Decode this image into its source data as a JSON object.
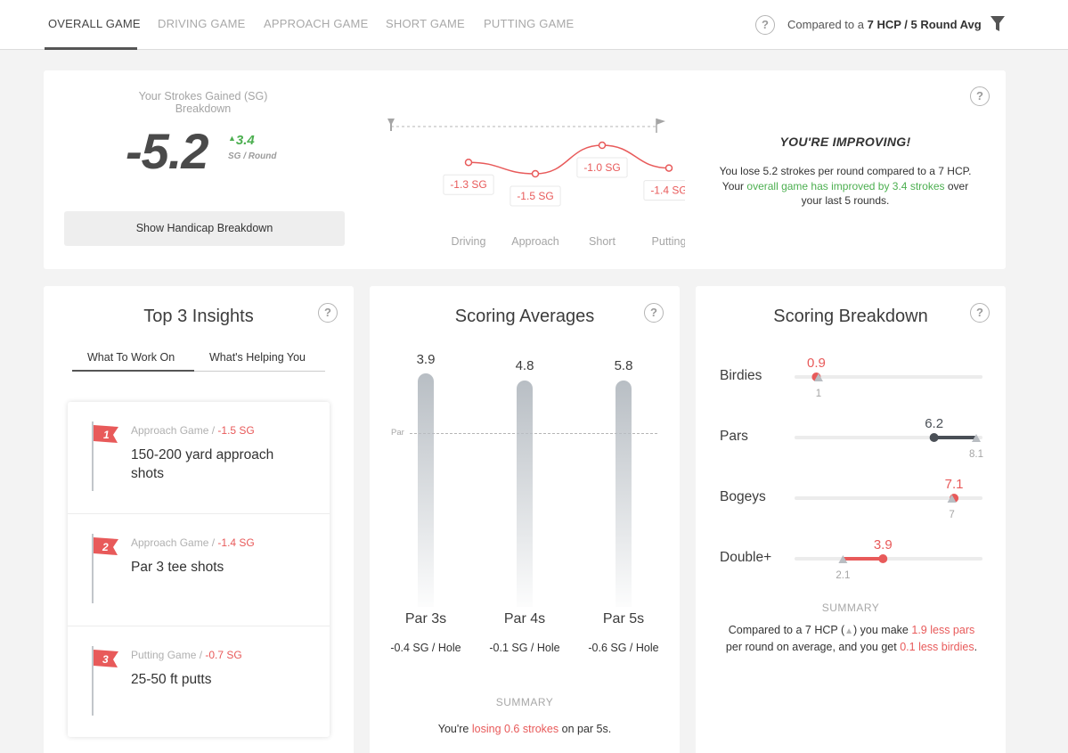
{
  "nav": {
    "tabs": [
      "OVERALL GAME",
      "DRIVING GAME",
      "APPROACH GAME",
      "SHORT GAME",
      "PUTTING GAME"
    ],
    "compare_prefix": "Compared to a",
    "compare_value": "7 HCP / 5 Round Avg"
  },
  "summary": {
    "label": "Your Strokes Gained (SG) Breakdown",
    "value": "-5.2",
    "delta": "3.4",
    "unit": "SG / Round",
    "button": "Show Handicap Breakdown",
    "improving_title": "YOU'RE IMPROVING!",
    "improving_line1": "You lose 5.2 strokes per round compared to a 7 HCP.",
    "improving_your": "Your",
    "improving_highlight": "overall game has improved by 3.4 strokes",
    "improving_over": "over",
    "improving_line3": "your last 5 rounds."
  },
  "chart_data": {
    "type": "line",
    "categories": [
      "Driving",
      "Approach",
      "Short",
      "Putting"
    ],
    "values": [
      -1.3,
      -1.5,
      -1.0,
      -1.4
    ],
    "data_labels": [
      "-1.3 SG",
      "-1.5 SG",
      "-1.0 SG",
      "-1.4 SG"
    ]
  },
  "insights": {
    "title": "Top 3 Insights",
    "tabs": [
      "What To Work On",
      "What's Helping You"
    ],
    "items": [
      {
        "num": "1",
        "category": "Approach Game /",
        "sg": "-1.5 SG",
        "title": "150-200 yard approach shots"
      },
      {
        "num": "2",
        "category": "Approach Game /",
        "sg": "-1.4 SG",
        "title": "Par 3 tee shots"
      },
      {
        "num": "3",
        "category": "Putting Game /",
        "sg": "-0.7 SG",
        "title": "25-50 ft putts"
      }
    ]
  },
  "scoring_averages": {
    "title": "Scoring Averages",
    "par_label": "Par",
    "bars": [
      {
        "name": "Par 3s",
        "value": "3.9",
        "sg": "-0.4 SG / Hole",
        "neg": false
      },
      {
        "name": "Par 4s",
        "value": "4.8",
        "sg": "-0.1 SG / Hole",
        "neg": false
      },
      {
        "name": "Par 5s",
        "value": "5.8",
        "sg": "-0.6 SG / Hole",
        "neg": true
      }
    ],
    "summary_heading": "SUMMARY",
    "summary_pre": "You're",
    "summary_highlight": "losing 0.6 strokes",
    "summary_post": "on par 5s."
  },
  "scoring_breakdown": {
    "title": "Scoring Breakdown",
    "rows": [
      {
        "label": "Birdies",
        "value": "0.9",
        "target": "1"
      },
      {
        "label": "Pars",
        "value": "6.2",
        "target": "8.1"
      },
      {
        "label": "Bogeys",
        "value": "7.1",
        "target": "7"
      },
      {
        "label": "Double+",
        "value": "3.9",
        "target": "2.1"
      }
    ],
    "summary_heading": "SUMMARY",
    "summary_1": "Compared to a 7 HCP (",
    "summary_2": ") you make",
    "summary_h1": "1.9 less pars",
    "summary_3": "per round on average, and you get",
    "summary_h2": "0.1 less birdies",
    "summary_4": "."
  },
  "colors": {
    "accent": "#e85a5a",
    "positive": "#4caf50",
    "dark": "#4a4f56"
  }
}
